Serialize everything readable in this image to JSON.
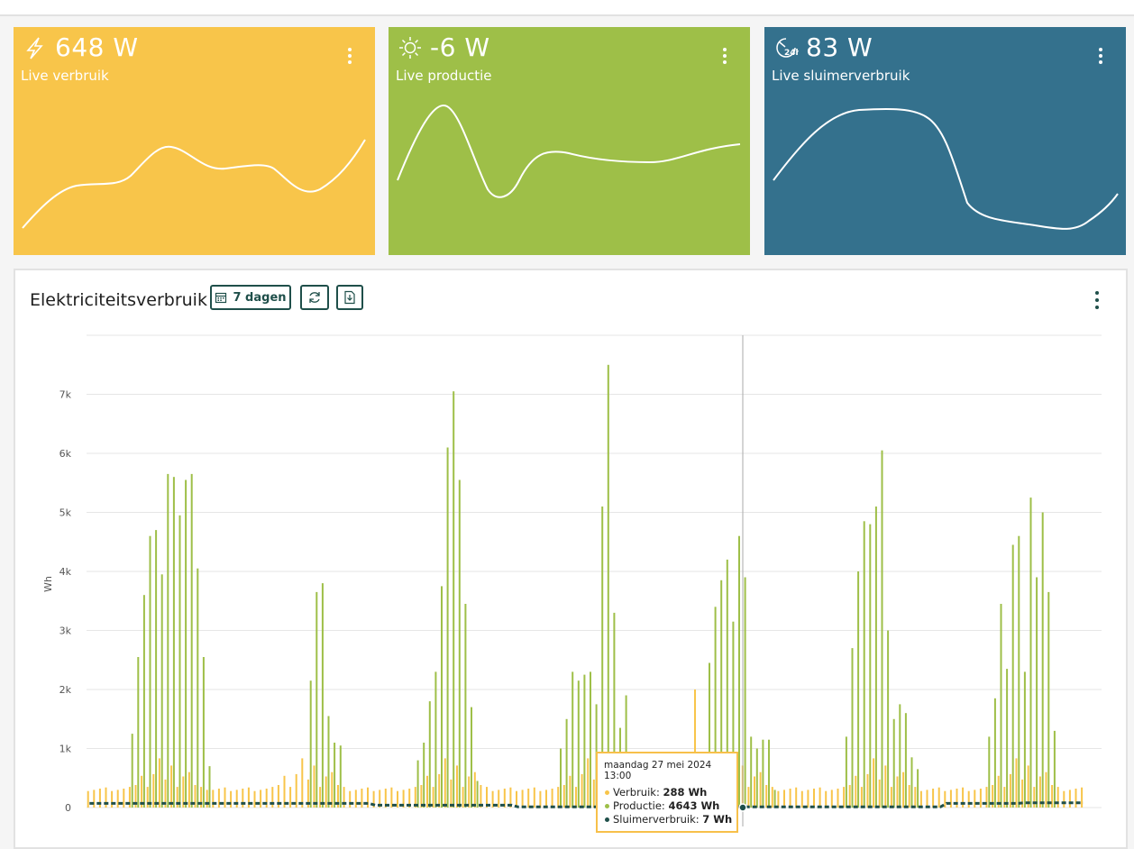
{
  "cards": [
    {
      "value": "648 W",
      "label": "Live verbruik",
      "color": "#f8c54a",
      "icon": "lightning-icon"
    },
    {
      "value": "-6 W",
      "label": "Live productie",
      "color": "#9ebf48",
      "icon": "sun-icon"
    },
    {
      "value": "83 W",
      "label": "Live sluimerverbruik",
      "color": "#34718d",
      "icon": "standby-24h-icon"
    }
  ],
  "panel": {
    "title": "Elektriciteitsverbruik",
    "range_button": "7 dagen",
    "refresh_icon": "refresh-icon",
    "export_icon": "export-icon",
    "menu_icon": "more-vertical-icon"
  },
  "tooltip": {
    "date": "maandag 27 mei 2024 13:00",
    "rows": [
      {
        "label": "Verbruik:",
        "value": "288 Wh",
        "color": "#f8c54a"
      },
      {
        "label": "Productie:",
        "value": "4643 Wh",
        "color": "#9ebf48"
      },
      {
        "label": "Sluimerverbruik:",
        "value": "7 Wh",
        "color": "#1f4f4a"
      }
    ]
  },
  "chart_data": {
    "type": "bar",
    "ylabel": "Wh",
    "yticks": [
      "0",
      "1k",
      "2k",
      "3k",
      "4k",
      "5k",
      "6k",
      "7k"
    ],
    "ylim": [
      0,
      8000
    ],
    "grid": true,
    "series": [
      {
        "name": "Verbruik",
        "color": "#f8c54a"
      },
      {
        "name": "Productie",
        "color": "#9ebf48"
      },
      {
        "name": "Sluimerverbruik",
        "color": "#1f4f4a"
      }
    ],
    "daily_production_peaks": [
      [
        0,
        0,
        0,
        0,
        0,
        0,
        0,
        1250,
        2550,
        3600,
        4600,
        4700,
        3950,
        5650,
        5600,
        4950,
        5550,
        5650,
        4050,
        2550,
        700,
        0,
        0,
        0
      ],
      [
        0,
        0,
        0,
        0,
        0,
        0,
        0,
        0,
        0,
        0,
        0,
        0,
        0,
        2150,
        3650,
        3800,
        1550,
        1100,
        1050,
        0,
        0,
        0,
        0,
        0
      ],
      [
        0,
        0,
        0,
        0,
        0,
        0,
        0,
        800,
        1100,
        1800,
        2300,
        3750,
        6100,
        7050,
        5550,
        3450,
        1700,
        450,
        0,
        0,
        0,
        0,
        0,
        0
      ],
      [
        0,
        0,
        0,
        0,
        0,
        0,
        0,
        1000,
        1500,
        2300,
        2150,
        2250,
        2300,
        1750,
        5100,
        7500,
        3300,
        1350,
        1900,
        0,
        0,
        0,
        0,
        0
      ],
      [
        0,
        0,
        0,
        0,
        0,
        0,
        0,
        0,
        2450,
        3400,
        3850,
        4200,
        3150,
        4600,
        3900,
        1200,
        1000,
        1150,
        1150,
        300,
        0,
        0,
        0,
        0
      ],
      [
        0,
        0,
        0,
        0,
        0,
        0,
        0,
        1200,
        2700,
        4000,
        4850,
        4800,
        5100,
        6050,
        3000,
        1500,
        1750,
        1600,
        850,
        650,
        0,
        0,
        0,
        0
      ],
      [
        0,
        0,
        0,
        0,
        0,
        0,
        0,
        1200,
        1850,
        3450,
        2350,
        4450,
        4600,
        2300,
        5250,
        3900,
        5000,
        3650,
        1300,
        0,
        0,
        0,
        0,
        0
      ]
    ]
  }
}
